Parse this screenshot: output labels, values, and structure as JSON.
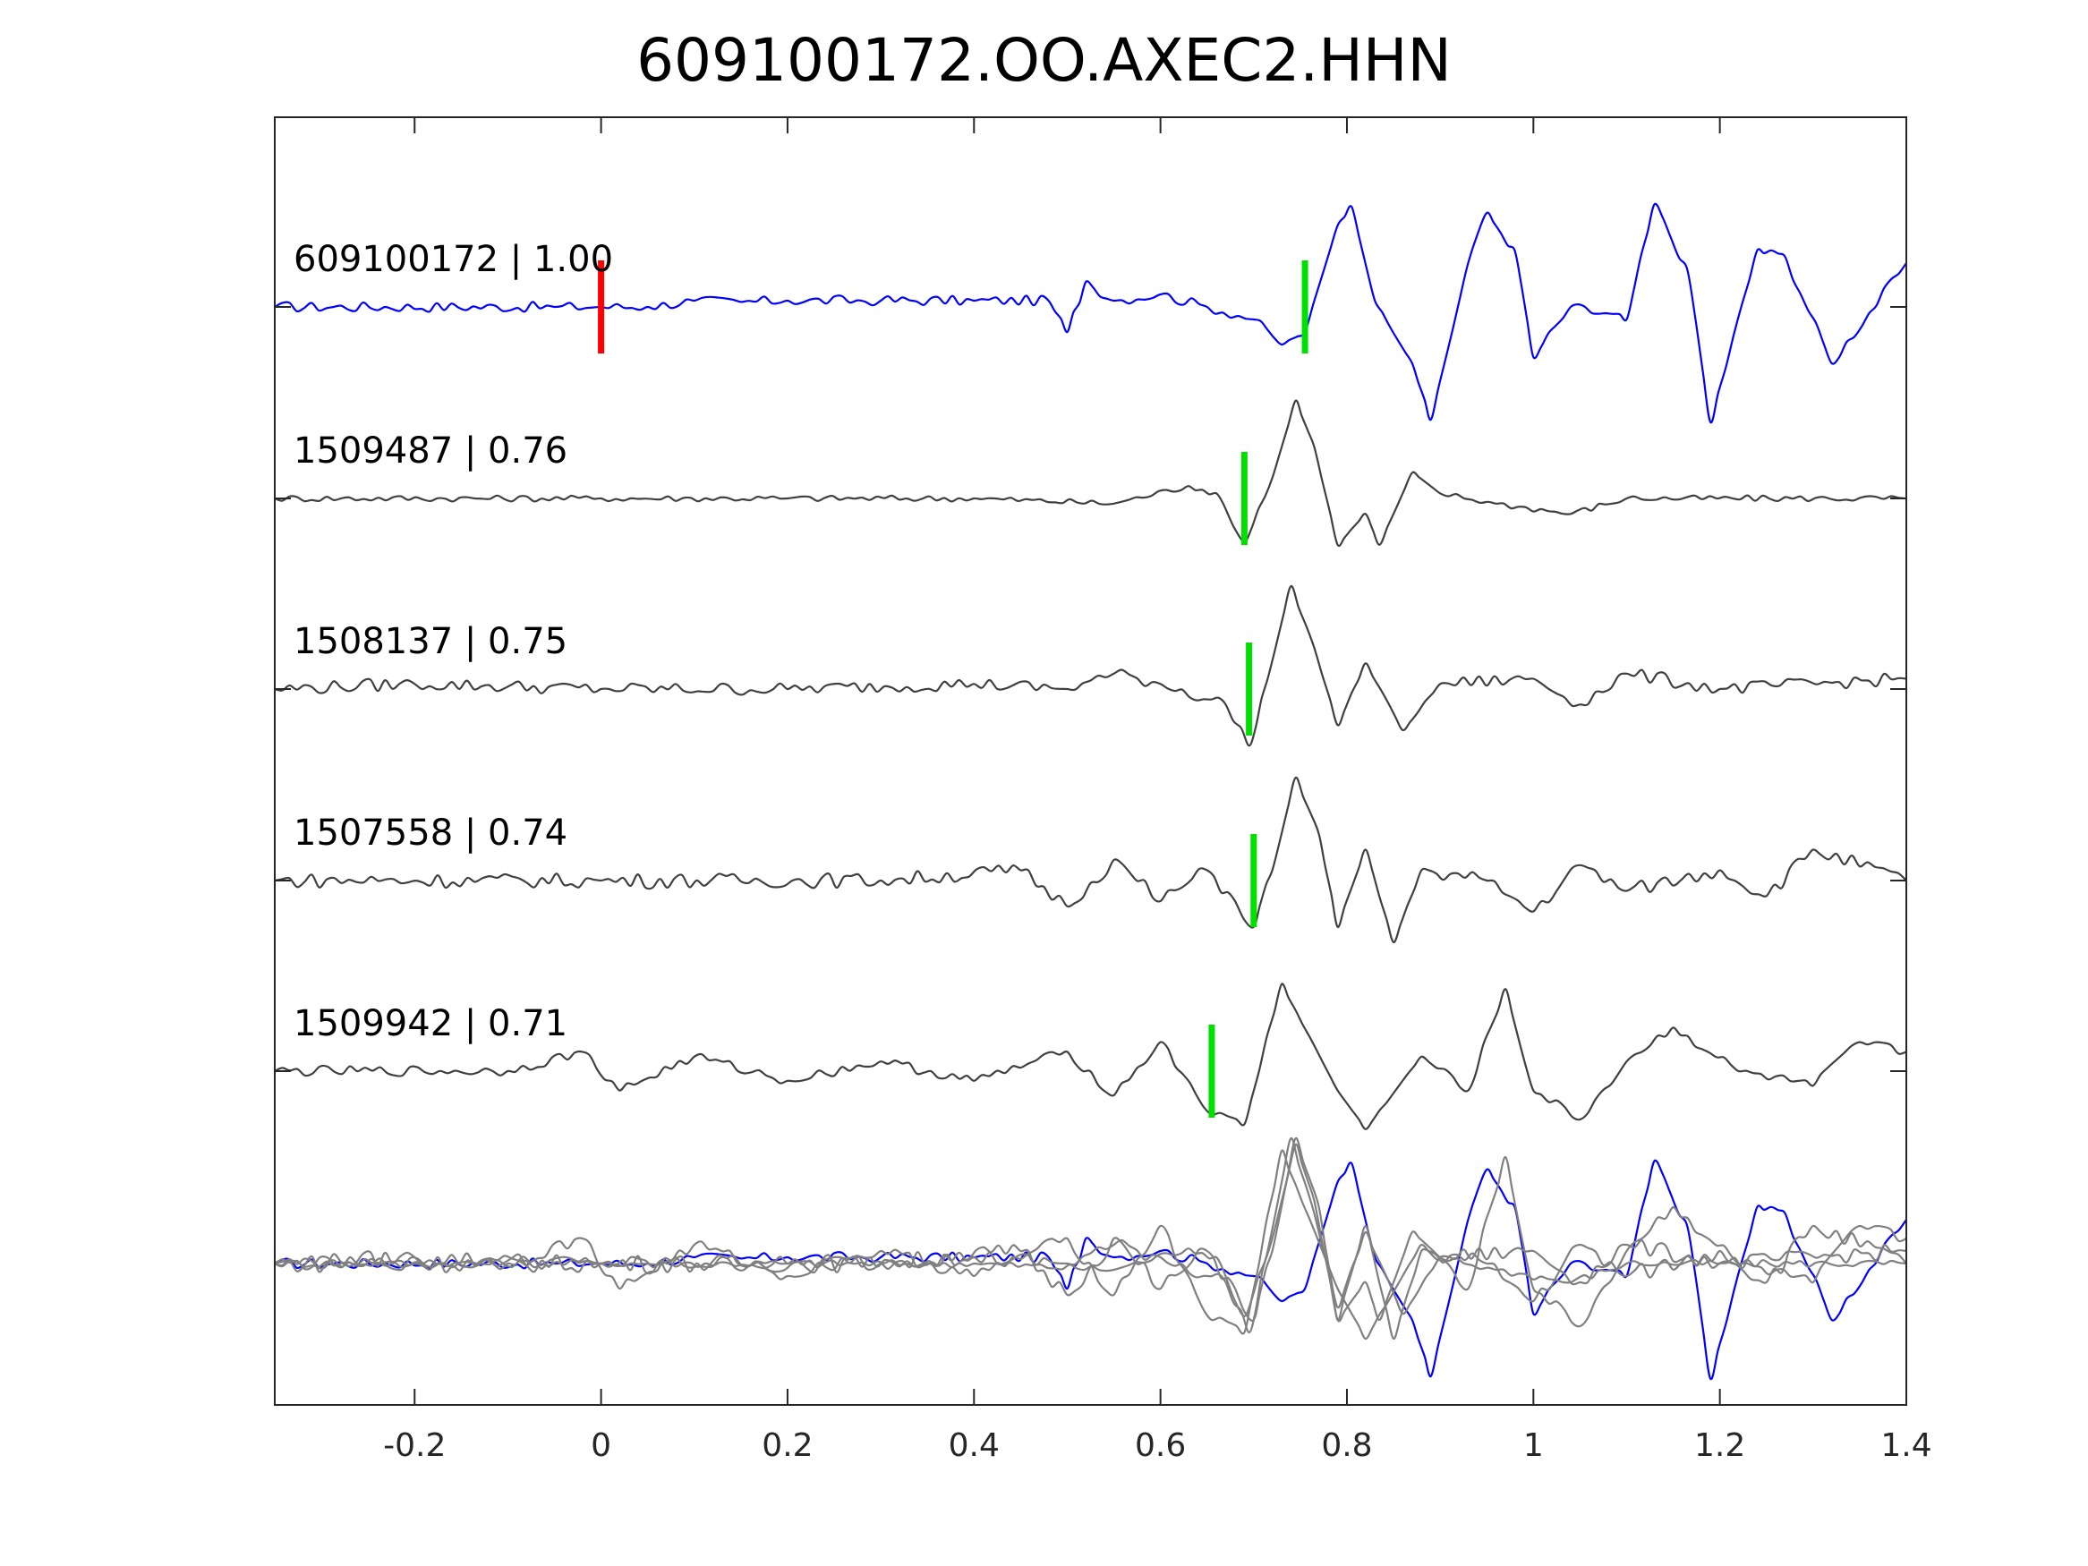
{
  "chart_data": {
    "type": "line",
    "title": "609100172.OO.AXEC2.HHN",
    "xlabel": "",
    "ylabel": "",
    "xlim": [
      -0.35,
      1.4
    ],
    "x_ticks": [
      -0.2,
      0,
      0.2,
      0.4,
      0.6,
      0.8,
      1,
      1.2,
      1.4
    ],
    "x_tick_labels": [
      "-0.2",
      "0",
      "0.2",
      "0.4",
      "0.6",
      "0.8",
      "1",
      "1.2",
      "1.4"
    ],
    "grid": false,
    "legend": "none",
    "colors": {
      "template": "#0000ff",
      "match": "#404040",
      "overlay_match": "#808080",
      "pick_red": "#ff0000",
      "pick_green": "#00e000",
      "axes": "#262626"
    },
    "traces": [
      {
        "label": "609100172 | 1.00",
        "role": "template",
        "picks": [
          {
            "x": 0.0,
            "color": "red"
          },
          {
            "x": 0.755,
            "color": "green"
          }
        ],
        "waveform": [
          [
            -0.35,
            0.0
          ],
          [
            -0.05,
            0.0
          ],
          [
            0.0,
            0.0
          ],
          [
            0.05,
            0.0
          ],
          [
            0.1,
            0.05
          ],
          [
            0.15,
            0.04
          ],
          [
            0.2,
            0.05
          ],
          [
            0.3,
            0.05
          ],
          [
            0.4,
            0.05
          ],
          [
            0.48,
            0.05
          ],
          [
            0.5,
            -0.2
          ],
          [
            0.52,
            0.2
          ],
          [
            0.55,
            0.05
          ],
          [
            0.6,
            0.1
          ],
          [
            0.65,
            0.0
          ],
          [
            0.7,
            -0.1
          ],
          [
            0.73,
            -0.3
          ],
          [
            0.755,
            -0.2
          ],
          [
            0.79,
            0.65
          ],
          [
            0.805,
            0.8
          ],
          [
            0.83,
            0.05
          ],
          [
            0.87,
            -0.45
          ],
          [
            0.89,
            -0.9
          ],
          [
            0.93,
            0.35
          ],
          [
            0.95,
            0.75
          ],
          [
            0.98,
            0.45
          ],
          [
            1.0,
            -0.4
          ],
          [
            1.04,
            0.0
          ],
          [
            1.1,
            -0.1
          ],
          [
            1.13,
            0.82
          ],
          [
            1.165,
            0.3
          ],
          [
            1.19,
            -0.92
          ],
          [
            1.24,
            0.45
          ],
          [
            1.27,
            0.4
          ],
          [
            1.32,
            -0.45
          ],
          [
            1.4,
            0.35
          ]
        ]
      },
      {
        "label": "1509487 | 0.76",
        "role": "match",
        "picks": [
          {
            "x": 0.69,
            "color": "green"
          }
        ],
        "waveform": [
          [
            -0.35,
            0.0
          ],
          [
            0.0,
            0.0
          ],
          [
            0.2,
            0.0
          ],
          [
            0.4,
            0.0
          ],
          [
            0.55,
            -0.05
          ],
          [
            0.63,
            0.12
          ],
          [
            0.66,
            0.05
          ],
          [
            0.68,
            -0.3
          ],
          [
            0.69,
            -0.42
          ],
          [
            0.72,
            0.2
          ],
          [
            0.745,
            0.95
          ],
          [
            0.765,
            0.5
          ],
          [
            0.79,
            -0.45
          ],
          [
            0.82,
            -0.15
          ],
          [
            0.835,
            -0.45
          ],
          [
            0.87,
            0.25
          ],
          [
            0.9,
            0.05
          ],
          [
            0.96,
            -0.05
          ],
          [
            1.04,
            -0.15
          ],
          [
            1.1,
            0.0
          ],
          [
            1.4,
            0.0
          ]
        ]
      },
      {
        "label": "1508137 | 0.75",
        "role": "match",
        "picks": [
          {
            "x": 0.695,
            "color": "green"
          }
        ],
        "waveform": [
          [
            -0.35,
            0.0
          ],
          [
            -0.2,
            0.05
          ],
          [
            0.0,
            0.0
          ],
          [
            0.2,
            0.0
          ],
          [
            0.4,
            0.05
          ],
          [
            0.5,
            0.0
          ],
          [
            0.55,
            0.15
          ],
          [
            0.6,
            0.05
          ],
          [
            0.67,
            -0.15
          ],
          [
            0.695,
            -0.55
          ],
          [
            0.715,
            0.1
          ],
          [
            0.74,
            1.0
          ],
          [
            0.765,
            0.4
          ],
          [
            0.79,
            -0.35
          ],
          [
            0.82,
            0.25
          ],
          [
            0.86,
            -0.4
          ],
          [
            0.9,
            0.05
          ],
          [
            1.0,
            0.1
          ],
          [
            1.05,
            -0.15
          ],
          [
            1.1,
            0.15
          ],
          [
            1.2,
            0.0
          ],
          [
            1.4,
            0.1
          ]
        ]
      },
      {
        "label": "1507558 | 0.74",
        "role": "match",
        "picks": [
          {
            "x": 0.7,
            "color": "green"
          }
        ],
        "waveform": [
          [
            -0.35,
            0.0
          ],
          [
            0.0,
            0.0
          ],
          [
            0.3,
            0.0
          ],
          [
            0.45,
            0.1
          ],
          [
            0.5,
            -0.25
          ],
          [
            0.55,
            0.2
          ],
          [
            0.6,
            -0.2
          ],
          [
            0.65,
            0.1
          ],
          [
            0.68,
            -0.2
          ],
          [
            0.7,
            -0.45
          ],
          [
            0.72,
            0.1
          ],
          [
            0.745,
            1.0
          ],
          [
            0.77,
            0.45
          ],
          [
            0.79,
            -0.45
          ],
          [
            0.82,
            0.3
          ],
          [
            0.85,
            -0.6
          ],
          [
            0.88,
            0.1
          ],
          [
            0.95,
            0.0
          ],
          [
            1.0,
            -0.3
          ],
          [
            1.05,
            0.15
          ],
          [
            1.1,
            -0.1
          ],
          [
            1.2,
            0.1
          ],
          [
            1.25,
            -0.15
          ],
          [
            1.3,
            0.3
          ],
          [
            1.4,
            0.0
          ]
        ]
      },
      {
        "label": "1509942 | 0.71",
        "role": "match",
        "picks": [
          {
            "x": 0.655,
            "color": "green"
          }
        ],
        "waveform": [
          [
            -0.35,
            0.0
          ],
          [
            -0.1,
            0.0
          ],
          [
            -0.02,
            0.2
          ],
          [
            0.02,
            -0.2
          ],
          [
            0.1,
            0.15
          ],
          [
            0.2,
            -0.1
          ],
          [
            0.3,
            0.1
          ],
          [
            0.4,
            -0.1
          ],
          [
            0.5,
            0.2
          ],
          [
            0.55,
            -0.25
          ],
          [
            0.6,
            0.3
          ],
          [
            0.655,
            -0.45
          ],
          [
            0.69,
            -0.55
          ],
          [
            0.73,
            0.9
          ],
          [
            0.79,
            -0.2
          ],
          [
            0.82,
            -0.6
          ],
          [
            0.88,
            0.15
          ],
          [
            0.93,
            -0.2
          ],
          [
            0.97,
            0.85
          ],
          [
            1.0,
            -0.2
          ],
          [
            1.05,
            -0.5
          ],
          [
            1.1,
            0.1
          ],
          [
            1.15,
            0.45
          ],
          [
            1.22,
            0.0
          ],
          [
            1.3,
            -0.15
          ],
          [
            1.35,
            0.3
          ],
          [
            1.4,
            0.2
          ]
        ]
      }
    ],
    "overlay": {
      "description_visible": false,
      "traces": [
        "609100172 | 1.00",
        "1509487 | 0.76",
        "1508137 | 0.75",
        "1507558 | 0.74",
        "1509942 | 0.71"
      ]
    }
  }
}
